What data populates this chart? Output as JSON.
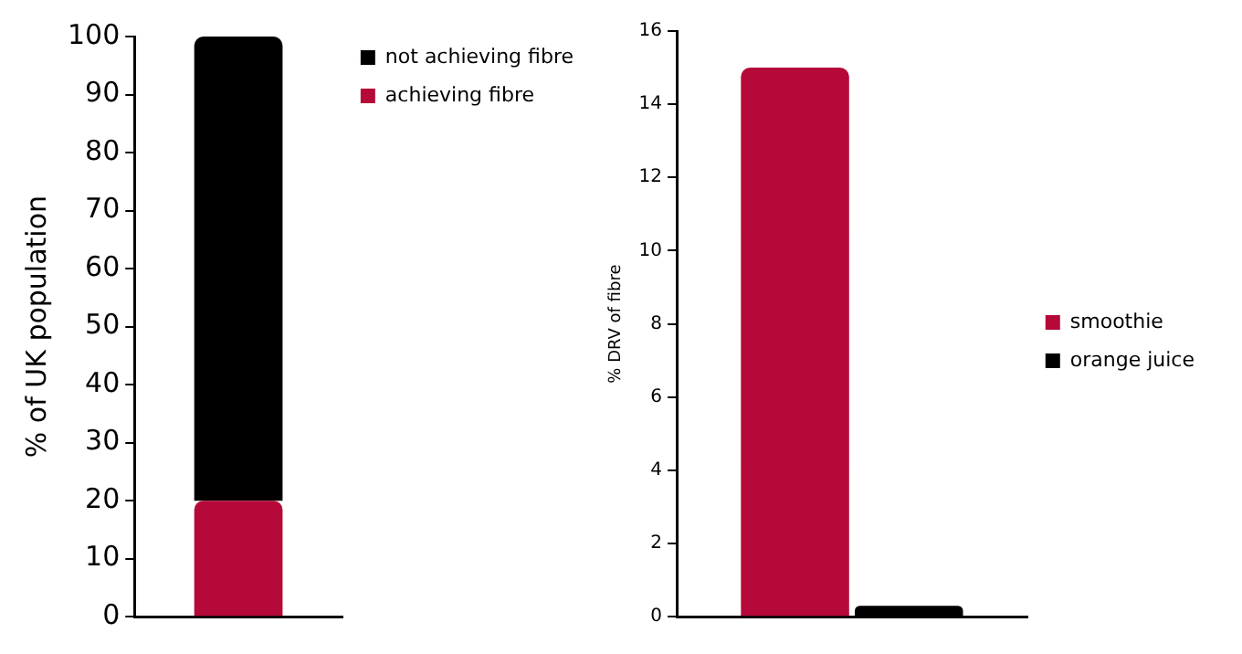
{
  "chart_data": [
    {
      "type": "bar",
      "stacked": true,
      "ylabel": "% of UK population",
      "categories": [
        null
      ],
      "ylim": [
        0,
        100
      ],
      "yticks": [
        0,
        10,
        20,
        30,
        40,
        50,
        60,
        70,
        80,
        90,
        100
      ],
      "grid": false,
      "legend": "top right",
      "series": [
        {
          "name": "achieving fibre",
          "color": "#b5093a",
          "values": [
            20
          ]
        },
        {
          "name": "not achieving fibre",
          "color": "#000000",
          "values": [
            80
          ]
        }
      ]
    },
    {
      "type": "bar",
      "ylabel": "% DRV of fibre",
      "categories": [
        null
      ],
      "ylim": [
        0,
        16
      ],
      "yticks": [
        0,
        2,
        4,
        6,
        8,
        10,
        12,
        14,
        16
      ],
      "grid": false,
      "legend": "right",
      "series": [
        {
          "name": "smoothie",
          "color": "#b5093a",
          "values": [
            15
          ]
        },
        {
          "name": "orange juice",
          "color": "#000000",
          "values": [
            0.3
          ]
        }
      ]
    }
  ]
}
